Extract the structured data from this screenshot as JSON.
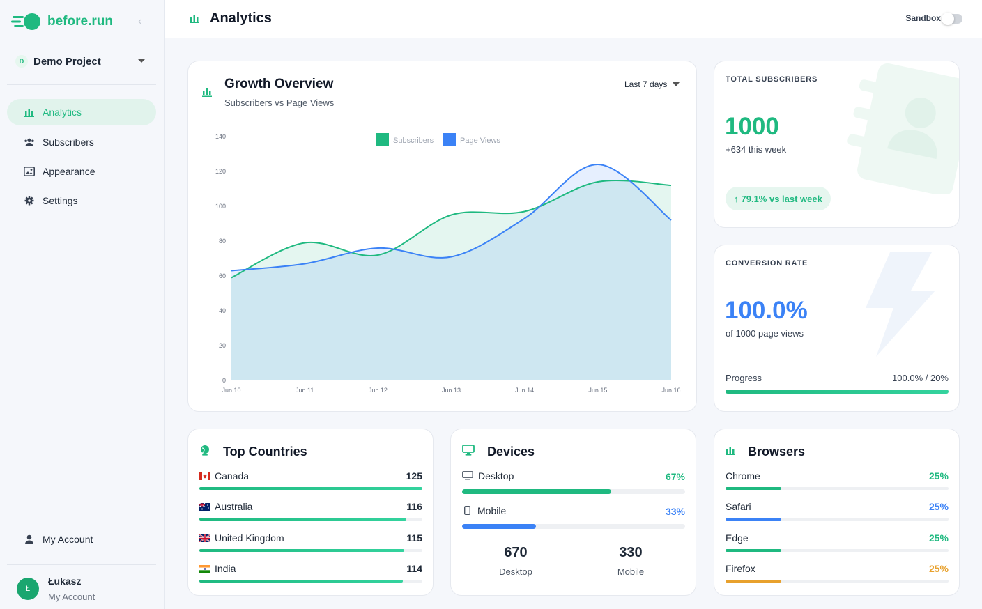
{
  "brand": {
    "name": "before.run"
  },
  "project": {
    "initial": "D",
    "name": "Demo Project"
  },
  "nav": {
    "items": [
      {
        "label": "Analytics"
      },
      {
        "label": "Subscribers"
      },
      {
        "label": "Appearance"
      },
      {
        "label": "Settings"
      }
    ],
    "account": "My Account"
  },
  "user": {
    "initial": "Ł",
    "name": "Łukasz",
    "sub": "My Account"
  },
  "header": {
    "title": "Analytics",
    "sandbox_label": "Sandbox",
    "sandbox_on": false
  },
  "growth": {
    "title": "Growth Overview",
    "subtitle": "Subscribers vs Page Views",
    "range": "Last 7 days"
  },
  "chart_data": {
    "type": "area",
    "title": "Growth Overview",
    "x": [
      "Jun 10",
      "Jun 11",
      "Jun 12",
      "Jun 13",
      "Jun 14",
      "Jun 15",
      "Jun 16"
    ],
    "series": [
      {
        "name": "Subscribers",
        "color": "#1fb980",
        "values": [
          59,
          79,
          72,
          95,
          97,
          114,
          112
        ]
      },
      {
        "name": "Page Views",
        "color": "#3b82f6",
        "values": [
          63,
          67,
          76,
          71,
          93,
          124,
          92
        ]
      }
    ],
    "ylim": [
      0,
      140
    ],
    "yticks": [
      "0",
      "20",
      "40",
      "60",
      "80",
      "100",
      "120",
      "140"
    ],
    "legend": "top-center",
    "grid": false
  },
  "subscribers": {
    "label": "TOTAL SUBSCRIBERS",
    "value": "1000",
    "sub": "+634 this week",
    "pill": "79.1% vs last week"
  },
  "conversion": {
    "label": "CONVERSION RATE",
    "value": "100.0%",
    "sub": "of 1000 page views",
    "progress_label": "Progress",
    "progress_value": "100.0% / 20%",
    "progress": 1.0
  },
  "countries": {
    "title": "Top Countries",
    "items": [
      {
        "name": "Canada",
        "value": "125",
        "fraction": 1.0
      },
      {
        "name": "Australia",
        "value": "116",
        "fraction": 0.928
      },
      {
        "name": "United Kingdom",
        "value": "115",
        "fraction": 0.92
      },
      {
        "name": "India",
        "value": "114",
        "fraction": 0.912
      }
    ]
  },
  "devices": {
    "title": "Devices",
    "items": [
      {
        "name": "Desktop",
        "value": "67%",
        "fraction": 0.67,
        "color": "#1fb980"
      },
      {
        "name": "Mobile",
        "value": "33%",
        "fraction": 0.33,
        "color": "#3b82f6"
      }
    ],
    "counts": [
      {
        "num": "670",
        "label": "Desktop"
      },
      {
        "num": "330",
        "label": "Mobile"
      }
    ]
  },
  "browsers": {
    "title": "Browsers",
    "items": [
      {
        "name": "Chrome",
        "value": "25%",
        "fraction": 0.25,
        "color": "#1fb980"
      },
      {
        "name": "Safari",
        "value": "25%",
        "fraction": 0.25,
        "color": "#3b82f6"
      },
      {
        "name": "Edge",
        "value": "25%",
        "fraction": 0.25,
        "color": "#1fb980"
      },
      {
        "name": "Firefox",
        "value": "25%",
        "fraction": 0.25,
        "color": "#e8a12d"
      }
    ]
  }
}
